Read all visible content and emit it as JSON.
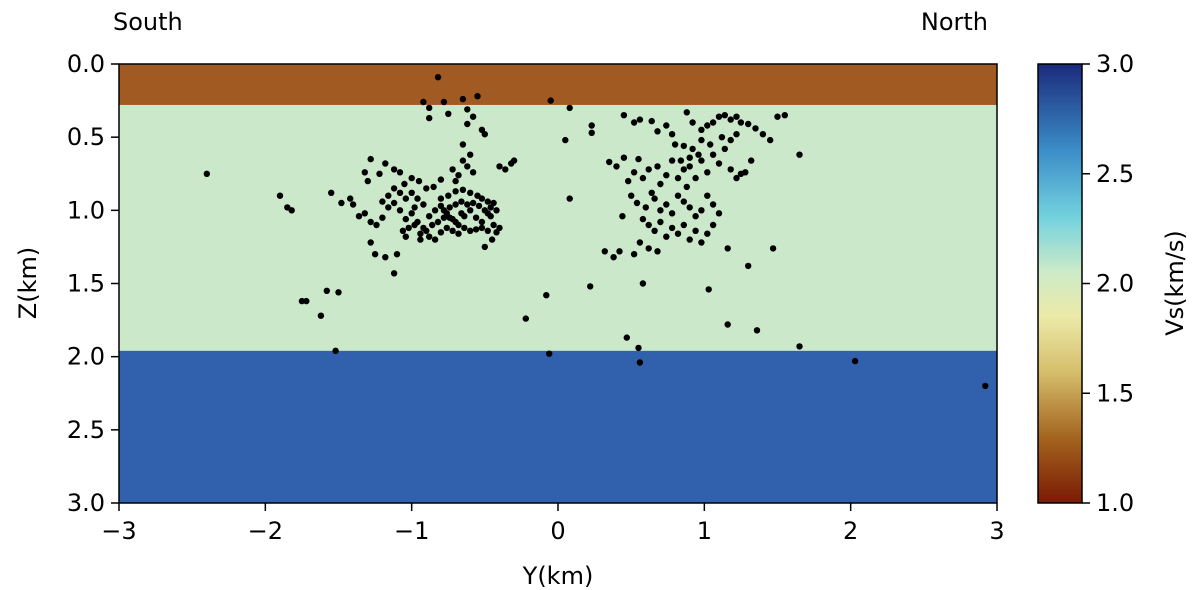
{
  "annotations": {
    "left": "South",
    "right": "North"
  },
  "colorbar": {
    "label": "Vs(km/s)",
    "range": [
      1.0,
      3.0
    ],
    "ticks": [
      "1.0",
      "1.5",
      "2.0",
      "2.5",
      "3.0"
    ],
    "stops": [
      {
        "value": 1.0,
        "color": "#7a1a04"
      },
      {
        "value": 1.3,
        "color": "#a4651f"
      },
      {
        "value": 1.6,
        "color": "#d6bf6d"
      },
      {
        "value": 1.85,
        "color": "#eceaa8"
      },
      {
        "value": 2.05,
        "color": "#cdebc8"
      },
      {
        "value": 2.3,
        "color": "#74d2de"
      },
      {
        "value": 2.6,
        "color": "#3c8fc8"
      },
      {
        "value": 3.0,
        "color": "#1b2a7c"
      }
    ]
  },
  "chart_data": {
    "type": "scatter",
    "title": "",
    "xlabel": "Y(km)",
    "ylabel": "Z(km)",
    "xlim": [
      -3,
      3
    ],
    "ylim": [
      3.0,
      0.0
    ],
    "y_inverted": true,
    "xticks": [
      "−3",
      "−2",
      "−1",
      "0",
      "1",
      "2",
      "3"
    ],
    "yticks": [
      "0.0",
      "0.5",
      "1.0",
      "1.5",
      "2.0",
      "2.5",
      "3.0"
    ],
    "layers": [
      {
        "z_top": 0.0,
        "z_bottom": 0.28,
        "vs": 1.25,
        "color": "#a05a22"
      },
      {
        "z_top": 0.28,
        "z_bottom": 1.96,
        "vs": 2.05,
        "color": "#cbe9ca"
      },
      {
        "z_top": 1.96,
        "z_bottom": 3.0,
        "vs": 2.7,
        "color": "#3160ac"
      }
    ],
    "points": [
      [
        -0.82,
        0.09
      ],
      [
        -0.92,
        0.26
      ],
      [
        -0.78,
        0.26
      ],
      [
        -0.65,
        0.24
      ],
      [
        -0.55,
        0.22
      ],
      [
        -0.05,
        0.25
      ],
      [
        0.08,
        0.3
      ],
      [
        -0.88,
        0.3
      ],
      [
        -0.75,
        0.34
      ],
      [
        -0.62,
        0.31
      ],
      [
        -0.58,
        0.36
      ],
      [
        -0.88,
        0.37
      ],
      [
        -0.62,
        0.41
      ],
      [
        -0.52,
        0.45
      ],
      [
        -0.5,
        0.48
      ],
      [
        -2.4,
        0.75
      ],
      [
        -1.9,
        0.9
      ],
      [
        -1.85,
        0.98
      ],
      [
        -1.82,
        1.0
      ],
      [
        -1.55,
        0.88
      ],
      [
        -1.48,
        0.95
      ],
      [
        -1.42,
        0.92
      ],
      [
        -1.32,
        0.74
      ],
      [
        -1.28,
        0.65
      ],
      [
        -1.3,
        0.8
      ],
      [
        -1.22,
        0.75
      ],
      [
        -1.18,
        0.68
      ],
      [
        -1.12,
        0.72
      ],
      [
        -1.08,
        0.74
      ],
      [
        -1.05,
        0.82
      ],
      [
        -1.0,
        0.78
      ],
      [
        -0.95,
        0.8
      ],
      [
        -0.9,
        0.85
      ],
      [
        -0.85,
        0.84
      ],
      [
        -0.8,
        0.79
      ],
      [
        -0.75,
        0.9
      ],
      [
        -0.7,
        0.87
      ],
      [
        -0.65,
        0.86
      ],
      [
        -0.6,
        0.88
      ],
      [
        -0.55,
        0.9
      ],
      [
        -0.52,
        0.92
      ],
      [
        -0.48,
        0.94
      ],
      [
        -0.44,
        0.95
      ],
      [
        -1.4,
        0.96
      ],
      [
        -1.36,
        1.04
      ],
      [
        -1.32,
        1.02
      ],
      [
        -1.28,
        1.08
      ],
      [
        -1.24,
        1.1
      ],
      [
        -1.2,
        1.05
      ],
      [
        -1.16,
        0.98
      ],
      [
        -1.12,
        0.95
      ],
      [
        -1.08,
        1.0
      ],
      [
        -1.04,
        1.06
      ],
      [
        -1.0,
        1.02
      ],
      [
        -0.96,
        1.08
      ],
      [
        -0.92,
        1.12
      ],
      [
        -0.88,
        1.04
      ],
      [
        -0.84,
        1.0
      ],
      [
        -0.8,
        0.97
      ],
      [
        -0.76,
        1.02
      ],
      [
        -0.72,
        1.06
      ],
      [
        -0.68,
        1.1
      ],
      [
        -0.64,
        1.04
      ],
      [
        -0.6,
        1.0
      ],
      [
        -0.56,
        1.05
      ],
      [
        -0.52,
        1.08
      ],
      [
        -0.48,
        1.02
      ],
      [
        -0.44,
        1.1
      ],
      [
        -0.4,
        1.12
      ],
      [
        -0.46,
        0.98
      ],
      [
        -0.42,
        1.0
      ],
      [
        -0.58,
        0.95
      ],
      [
        -0.62,
        0.96
      ],
      [
        -0.66,
        0.94
      ],
      [
        -0.7,
        0.96
      ],
      [
        -0.74,
        0.98
      ],
      [
        -0.78,
        1.05
      ],
      [
        -0.82,
        1.08
      ],
      [
        -0.86,
        1.1
      ],
      [
        -0.9,
        1.14
      ],
      [
        -0.94,
        1.16
      ],
      [
        -0.98,
        1.1
      ],
      [
        -1.02,
        1.12
      ],
      [
        -1.06,
        1.14
      ],
      [
        -0.88,
        1.18
      ],
      [
        -0.84,
        1.2
      ],
      [
        -0.8,
        1.15
      ],
      [
        -0.76,
        1.12
      ],
      [
        -0.72,
        1.14
      ],
      [
        -0.68,
        1.16
      ],
      [
        -0.64,
        1.12
      ],
      [
        -0.6,
        1.14
      ],
      [
        -0.56,
        1.13
      ],
      [
        -0.52,
        1.12
      ],
      [
        -0.48,
        1.14
      ],
      [
        -0.7,
        1.08
      ],
      [
        -0.74,
        1.05
      ],
      [
        -0.78,
        1.0
      ],
      [
        -0.66,
        1.02
      ],
      [
        -0.54,
        0.97
      ],
      [
        -0.5,
        1.0
      ],
      [
        -0.46,
        1.04
      ],
      [
        -0.96,
        0.92
      ],
      [
        -1.0,
        0.88
      ],
      [
        -1.04,
        0.92
      ],
      [
        -1.08,
        0.88
      ],
      [
        -1.12,
        0.85
      ],
      [
        -1.16,
        0.9
      ],
      [
        -1.2,
        0.94
      ],
      [
        -0.72,
        0.72
      ],
      [
        -0.68,
        0.76
      ],
      [
        -0.62,
        0.7
      ],
      [
        -0.58,
        0.74
      ],
      [
        -0.65,
        0.66
      ],
      [
        -0.6,
        0.62
      ],
      [
        -0.65,
        0.55
      ],
      [
        -0.7,
        0.8
      ],
      [
        -0.8,
        0.92
      ],
      [
        -0.92,
        0.96
      ],
      [
        -0.98,
        0.98
      ],
      [
        -0.4,
        0.7
      ],
      [
        -0.36,
        0.72
      ],
      [
        -0.3,
        0.66
      ],
      [
        -0.32,
        0.68
      ],
      [
        -1.28,
        1.22
      ],
      [
        -1.25,
        1.3
      ],
      [
        -1.18,
        1.32
      ],
      [
        -1.1,
        1.3
      ],
      [
        -1.12,
        1.43
      ],
      [
        -1.04,
        1.18
      ],
      [
        -0.94,
        1.2
      ],
      [
        -0.45,
        1.2
      ],
      [
        -0.5,
        1.25
      ],
      [
        -0.42,
        1.15
      ],
      [
        -1.75,
        1.62
      ],
      [
        -1.72,
        1.62
      ],
      [
        -1.58,
        1.55
      ],
      [
        -1.5,
        1.56
      ],
      [
        -1.62,
        1.72
      ],
      [
        -1.52,
        1.96
      ],
      [
        -0.08,
        1.58
      ],
      [
        -0.22,
        1.74
      ],
      [
        -0.06,
        1.98
      ],
      [
        0.22,
        1.52
      ],
      [
        0.08,
        0.92
      ],
      [
        0.05,
        0.52
      ],
      [
        0.23,
        0.42
      ],
      [
        0.23,
        0.47
      ],
      [
        0.45,
        0.35
      ],
      [
        0.52,
        0.4
      ],
      [
        0.56,
        0.38
      ],
      [
        0.64,
        0.39
      ],
      [
        0.68,
        0.46
      ],
      [
        0.74,
        0.42
      ],
      [
        0.78,
        0.48
      ],
      [
        0.88,
        0.33
      ],
      [
        0.92,
        0.4
      ],
      [
        0.98,
        0.45
      ],
      [
        1.02,
        0.42
      ],
      [
        1.06,
        0.4
      ],
      [
        1.1,
        0.36
      ],
      [
        1.14,
        0.35
      ],
      [
        1.18,
        0.38
      ],
      [
        1.22,
        0.36
      ],
      [
        1.25,
        0.4
      ],
      [
        1.3,
        0.41
      ],
      [
        1.35,
        0.44
      ],
      [
        1.4,
        0.48
      ],
      [
        1.45,
        0.52
      ],
      [
        1.5,
        0.36
      ],
      [
        1.55,
        0.35
      ],
      [
        1.65,
        0.62
      ],
      [
        0.35,
        0.67
      ],
      [
        0.4,
        0.7
      ],
      [
        0.45,
        0.64
      ],
      [
        0.48,
        0.8
      ],
      [
        0.52,
        0.74
      ],
      [
        0.55,
        0.65
      ],
      [
        0.58,
        0.78
      ],
      [
        0.62,
        0.72
      ],
      [
        0.64,
        0.88
      ],
      [
        0.68,
        0.7
      ],
      [
        0.7,
        0.82
      ],
      [
        0.74,
        0.76
      ],
      [
        0.78,
        0.66
      ],
      [
        0.82,
        0.78
      ],
      [
        0.86,
        0.72
      ],
      [
        0.88,
        0.84
      ],
      [
        0.9,
        0.7
      ],
      [
        0.94,
        0.78
      ],
      [
        0.98,
        0.66
      ],
      [
        1.02,
        0.74
      ],
      [
        1.06,
        0.62
      ],
      [
        1.1,
        0.68
      ],
      [
        1.14,
        0.58
      ],
      [
        1.18,
        0.72
      ],
      [
        1.22,
        0.78
      ],
      [
        1.25,
        0.75
      ],
      [
        1.28,
        0.74
      ],
      [
        1.32,
        0.66
      ],
      [
        1.18,
        0.52
      ],
      [
        1.22,
        0.48
      ],
      [
        1.12,
        0.5
      ],
      [
        1.04,
        0.55
      ],
      [
        0.98,
        0.52
      ],
      [
        0.92,
        0.58
      ],
      [
        0.86,
        0.56
      ],
      [
        0.8,
        0.55
      ],
      [
        0.96,
        0.62
      ],
      [
        0.9,
        0.64
      ],
      [
        0.84,
        0.66
      ],
      [
        0.5,
        0.9
      ],
      [
        0.54,
        0.95
      ],
      [
        0.6,
        0.98
      ],
      [
        0.66,
        0.92
      ],
      [
        0.7,
        1.0
      ],
      [
        0.74,
        0.96
      ],
      [
        0.78,
        1.02
      ],
      [
        0.82,
        0.9
      ],
      [
        0.86,
        0.94
      ],
      [
        0.9,
        0.98
      ],
      [
        0.94,
        1.04
      ],
      [
        0.98,
        1.0
      ],
      [
        1.02,
        0.9
      ],
      [
        1.06,
        0.96
      ],
      [
        1.1,
        1.02
      ],
      [
        0.44,
        1.04
      ],
      [
        0.58,
        1.06
      ],
      [
        0.62,
        1.1
      ],
      [
        0.66,
        1.14
      ],
      [
        0.7,
        1.08
      ],
      [
        0.74,
        1.18
      ],
      [
        0.78,
        1.12
      ],
      [
        0.82,
        1.16
      ],
      [
        0.86,
        1.1
      ],
      [
        0.9,
        1.2
      ],
      [
        0.94,
        1.14
      ],
      [
        0.98,
        1.22
      ],
      [
        1.02,
        1.16
      ],
      [
        1.06,
        1.1
      ],
      [
        0.42,
        1.28
      ],
      [
        0.52,
        1.3
      ],
      [
        0.56,
        1.22
      ],
      [
        0.62,
        1.26
      ],
      [
        0.68,
        1.28
      ],
      [
        0.32,
        1.28
      ],
      [
        0.38,
        1.32
      ],
      [
        1.16,
        1.26
      ],
      [
        1.3,
        1.38
      ],
      [
        1.47,
        1.26
      ],
      [
        1.03,
        1.54
      ],
      [
        0.58,
        1.5
      ],
      [
        0.47,
        1.87
      ],
      [
        0.55,
        1.94
      ],
      [
        0.56,
        2.04
      ],
      [
        1.16,
        1.78
      ],
      [
        1.36,
        1.82
      ],
      [
        1.65,
        1.93
      ],
      [
        2.03,
        2.03
      ],
      [
        2.92,
        2.2
      ]
    ]
  }
}
